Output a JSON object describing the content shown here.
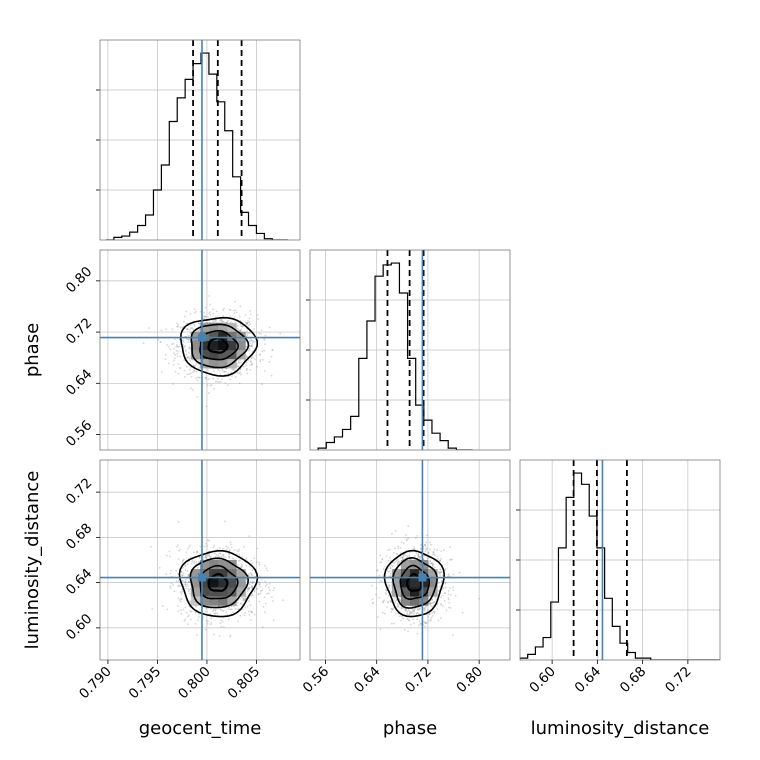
{
  "chart_data": {
    "type": "corner",
    "parameters": [
      "geocent_time",
      "phase",
      "luminosity_distance"
    ],
    "axis_labels": {
      "geocent_time": "geocent_time",
      "phase": "phase",
      "luminosity_distance": "luminosity_distance"
    },
    "ranges": {
      "geocent_time": [
        0.7892,
        0.8094
      ],
      "phase": [
        0.5358,
        0.8482
      ],
      "luminosity_distance": [
        0.5716,
        0.7484
      ]
    },
    "ticks": {
      "geocent_time": [
        0.79,
        0.795,
        0.8,
        0.805
      ],
      "phase": [
        0.56,
        0.64,
        0.72,
        0.8
      ],
      "luminosity_distance": [
        0.6,
        0.64,
        0.68,
        0.72
      ]
    },
    "tick_labels": {
      "geocent_time": [
        "0.790",
        "0.795",
        "0.800",
        "0.805"
      ],
      "phase": [
        "0.56",
        "0.64",
        "0.72",
        "0.80"
      ],
      "luminosity_distance": [
        "0.60",
        "0.64",
        "0.68",
        "0.72"
      ]
    },
    "injection": {
      "geocent_time": 0.7995,
      "phase": 0.7114,
      "luminosity_distance": 0.6445
    },
    "quantiles": {
      "geocent_time": [
        0.7986,
        0.8011,
        0.8035
      ],
      "phase": [
        0.6568,
        0.6914,
        0.7132
      ],
      "luminosity_distance": [
        0.619,
        0.6396,
        0.6661
      ]
    },
    "histograms": {
      "geocent_time": {
        "edges_start": 0.7898,
        "bin_width": 0.0008,
        "counts": [
          0,
          2,
          3,
          6,
          11,
          19,
          38,
          57,
          90,
          108,
          122,
          134,
          142,
          126,
          105,
          83,
          48,
          21,
          11,
          5,
          1,
          0,
          0
        ]
      },
      "phase": {
        "edges_start": 0.5485,
        "bin_width": 0.0127,
        "counts": [
          1,
          4,
          7,
          11,
          18,
          49,
          69,
          93,
          99,
          100,
          84,
          49,
          24,
          16,
          9,
          5,
          1,
          0,
          0
        ]
      },
      "luminosity_distance": {
        "edges_start": 0.5716,
        "bin_width": 0.0068,
        "counts": [
          1,
          3,
          7,
          12,
          31,
          60,
          87,
          100,
          94,
          77,
          60,
          33,
          18,
          9,
          4,
          1,
          1,
          0,
          0,
          0,
          0,
          0,
          0,
          0,
          0,
          0
        ]
      }
    },
    "pairs": [
      {
        "x": "geocent_time",
        "y": "phase",
        "center": [
          0.8011,
          0.6989
        ],
        "sigma": [
          0.0019,
          0.0225
        ]
      },
      {
        "x": "geocent_time",
        "y": "luminosity_distance",
        "center": [
          0.8011,
          0.6396
        ],
        "sigma": [
          0.0019,
          0.0145
        ]
      },
      {
        "x": "phase",
        "y": "luminosity_distance",
        "center": [
          0.6989,
          0.6396
        ],
        "sigma": [
          0.0225,
          0.0145
        ]
      }
    ],
    "colors": {
      "injection": "#4682b4",
      "histogram": "#000000",
      "contours": "#000000",
      "points": "#8c8c8c",
      "grid": "#bfbfbf",
      "frame": "#7a7a7a"
    },
    "grid": true
  }
}
